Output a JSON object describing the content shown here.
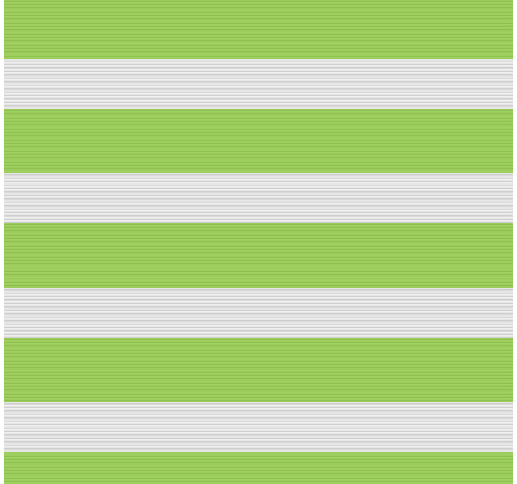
{
  "image": {
    "subject": "zebra-blind-fabric",
    "colors": {
      "green": "#9bcc5c",
      "gray": "#e2e2e2"
    },
    "bands": [
      "green",
      "gray",
      "green",
      "gray",
      "green",
      "gray",
      "green",
      "gray",
      "green"
    ]
  }
}
